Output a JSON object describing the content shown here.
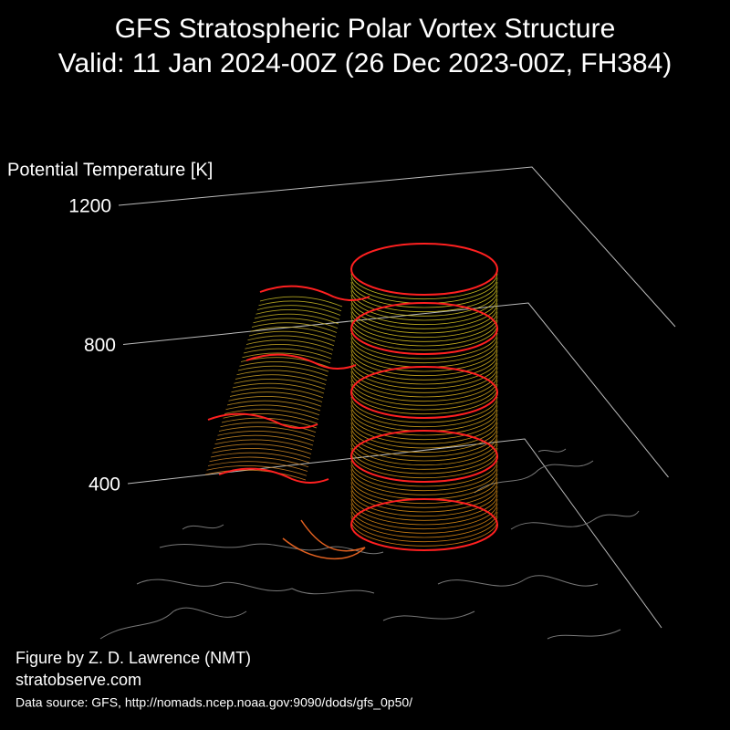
{
  "chart_data": {
    "type": "surface3d",
    "title": "GFS Stratospheric Polar Vortex Structure",
    "subtitle": "Valid: 11 Jan 2024-00Z  (26 Dec 2023-00Z, FH384)",
    "zlabel": "Potential Temperature [K]",
    "zticks": [
      400,
      800,
      1200
    ]
  },
  "credits": {
    "author": "Figure by Z. D. Lawrence (NMT)",
    "website": "stratobserve.com",
    "source": "Data source: GFS, http://nomads.ncep.noaa.gov:9090/dods/gfs_0p50/"
  }
}
